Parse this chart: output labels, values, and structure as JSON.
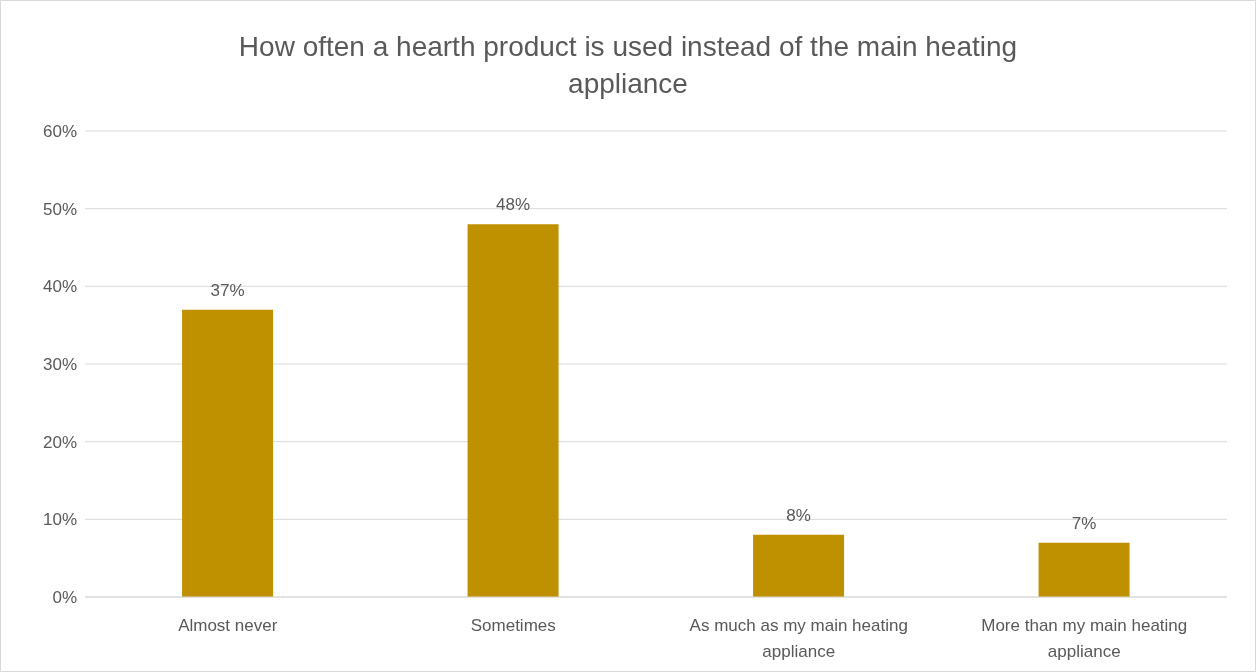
{
  "chart_data": {
    "type": "bar",
    "title": "How often a hearth product is used instead of the main heating appliance",
    "categories": [
      "Almost never",
      "Sometimes",
      "As much as my main heating appliance",
      "More than my main heating appliance"
    ],
    "values": [
      37,
      48,
      8,
      7
    ],
    "color": "#bf9000",
    "value_labels": [
      "37%",
      "48%",
      "8%",
      "7%"
    ],
    "ylim": [
      0,
      60
    ],
    "yticks": [
      {
        "value": 0,
        "label": "0%"
      },
      {
        "value": 10,
        "label": "10%"
      },
      {
        "value": 20,
        "label": "20%"
      },
      {
        "value": 30,
        "label": "30%"
      },
      {
        "value": 40,
        "label": "40%"
      },
      {
        "value": 50,
        "label": "50%"
      },
      {
        "value": 60,
        "label": "60%"
      }
    ],
    "grid": "y"
  }
}
